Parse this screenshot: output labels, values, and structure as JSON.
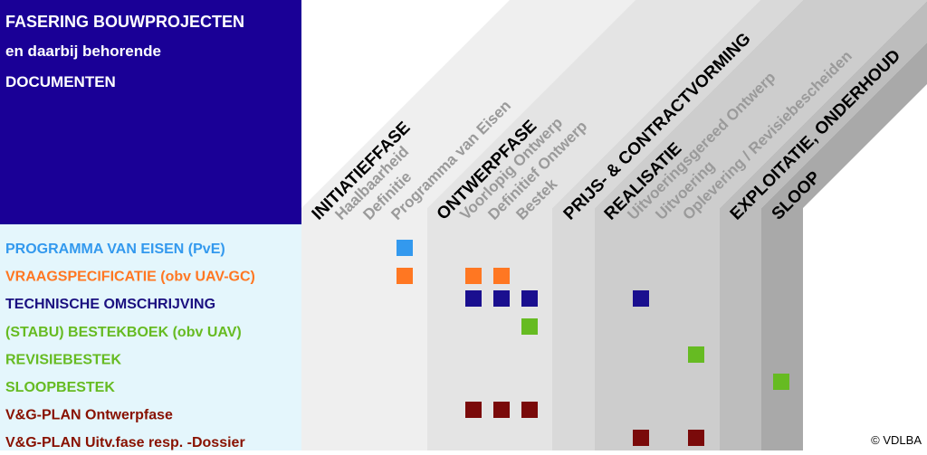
{
  "header": {
    "lines": [
      "FASERING  BOUWPROJECTEN",
      "en daarbij behorende",
      "DOCUMENTEN"
    ]
  },
  "phases": [
    {
      "label": "INITIATIEFFASE",
      "steps": [
        "Haalbaarheid",
        "Definitie",
        "Programma van Eisen"
      ]
    },
    {
      "label": "ONTWERPFASE",
      "steps": [
        "Voorlopig Ontwerp",
        "Definitief Ontwerp",
        "Bestek"
      ]
    },
    {
      "label": "PRIJS- & CONTRACTVORMING",
      "steps": []
    },
    {
      "label": "REALISATIE",
      "steps": [
        "Uitvoeringsgereed Ontwerp",
        "Uitvoering",
        "Oplevering / Revisiebescheiden"
      ]
    },
    {
      "label": "EXPLOITATIE, ONDERHOUD",
      "steps": []
    },
    {
      "label": "SLOOP",
      "steps": []
    }
  ],
  "rows": [
    {
      "label": "PROGRAMMA VAN EISEN (PvE)",
      "color": "#3399ee"
    },
    {
      "label": "VRAAGSPECIFICATIE (obv UAV-GC)",
      "color": "#ff7722"
    },
    {
      "label": "TECHNISCHE OMSCHRIJVING",
      "color": "#1a1080"
    },
    {
      "label": "(STABU) BESTEKBOEK (obv UAV)",
      "color": "#66bb22"
    },
    {
      "label": "REVISIEBESTEK",
      "color": "#66bb22"
    },
    {
      "label": "SLOOPBESTEK",
      "color": "#66bb22"
    },
    {
      "label": "V&G-PLAN Ontwerpfase",
      "color": "#881100"
    },
    {
      "label": "V&G-PLAN Uitv.fase resp. -Dossier",
      "color": "#881100"
    }
  ],
  "copyright": "© VDLBA"
}
